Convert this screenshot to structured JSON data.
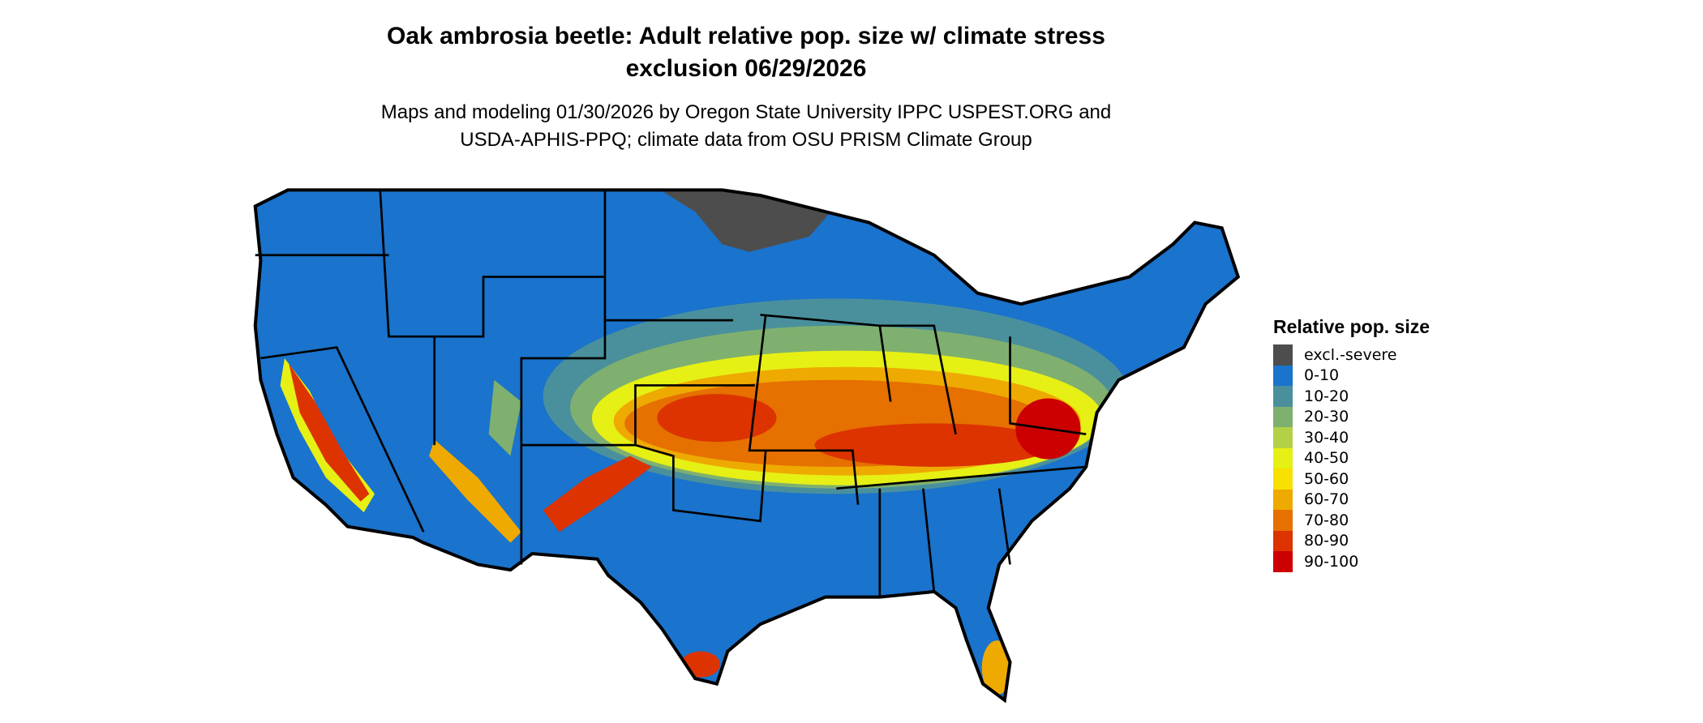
{
  "title": {
    "line1": "Oak ambrosia beetle: Adult relative pop. size w/ climate stress",
    "line2": "exclusion 06/29/2026"
  },
  "subtitle": {
    "line1": "Maps and modeling 01/30/2026 by Oregon State University IPPC USPEST.ORG and",
    "line2": "USDA-APHIS-PPQ; climate data from OSU PRISM Climate Group"
  },
  "legend": {
    "title": "Relative pop. size",
    "items": [
      {
        "label": "excl.-severe",
        "color": "#4d4d4d"
      },
      {
        "label": "0-10",
        "color": "#1a73cc"
      },
      {
        "label": "10-20",
        "color": "#4a909c"
      },
      {
        "label": "20-30",
        "color": "#7fb06f"
      },
      {
        "label": "30-40",
        "color": "#b3d147"
      },
      {
        "label": "40-50",
        "color": "#e6f014"
      },
      {
        "label": "50-60",
        "color": "#f8e000"
      },
      {
        "label": "60-70",
        "color": "#eeaa00"
      },
      {
        "label": "70-80",
        "color": "#e67000"
      },
      {
        "label": "80-90",
        "color": "#dc3300"
      },
      {
        "label": "90-100",
        "color": "#cc0000"
      }
    ]
  }
}
